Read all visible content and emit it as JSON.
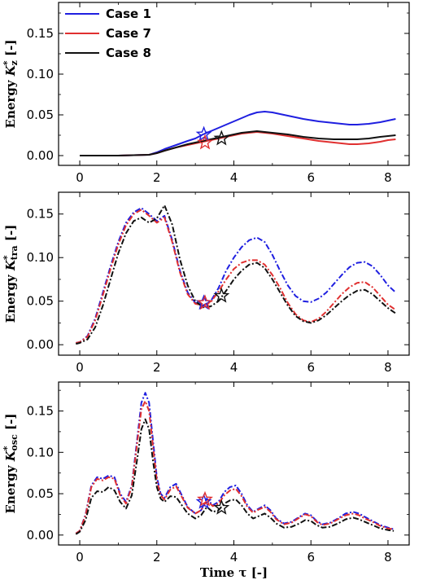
{
  "chart_data": [
    {
      "type": "line",
      "ylabel": "Energy K*z [-]",
      "ylabel_parts": {
        "pre": "Energy ",
        "sym": "K",
        "sup": "*",
        "sub": "z",
        "post": " [-]"
      },
      "xlim": [
        -0.55,
        8.55
      ],
      "ylim": [
        -0.012,
        0.188
      ],
      "xticks": [
        "0",
        "2",
        "4",
        "6",
        "8"
      ],
      "yticks": [
        "0.00",
        "0.05",
        "0.10",
        "0.15"
      ],
      "line_style": "solid",
      "legend": {
        "placement": "top-left",
        "entries": [
          "Case 1",
          "Case 7",
          "Case 8"
        ]
      },
      "series": [
        {
          "name": "Case 1",
          "color": "#1f1fe0",
          "x": [
            0,
            1,
            1.8,
            2.0,
            2.2,
            2.5,
            2.8,
            3.0,
            3.2,
            3.4,
            3.6,
            3.8,
            4.0,
            4.2,
            4.4,
            4.6,
            4.8,
            5.0,
            5.4,
            5.8,
            6.2,
            6.6,
            7.0,
            7.2,
            7.5,
            7.8,
            8.0,
            8.2
          ],
          "y": [
            0,
            0,
            0.001,
            0.004,
            0.008,
            0.013,
            0.018,
            0.021,
            0.026,
            0.03,
            0.034,
            0.038,
            0.042,
            0.046,
            0.05,
            0.053,
            0.054,
            0.053,
            0.049,
            0.045,
            0.042,
            0.04,
            0.038,
            0.038,
            0.039,
            0.041,
            0.043,
            0.045
          ],
          "marker": {
            "x": 3.22,
            "y": 0.026
          }
        },
        {
          "name": "Case 7",
          "color": "#e03030",
          "x": [
            0,
            1,
            1.8,
            2.0,
            2.2,
            2.5,
            2.8,
            3.0,
            3.2,
            3.4,
            3.6,
            3.8,
            4.0,
            4.2,
            4.4,
            4.6,
            4.8,
            5.0,
            5.4,
            5.8,
            6.2,
            6.6,
            7.0,
            7.2,
            7.5,
            7.8,
            8.0,
            8.2
          ],
          "y": [
            0,
            0,
            0.001,
            0.003,
            0.006,
            0.01,
            0.013,
            0.015,
            0.017,
            0.019,
            0.021,
            0.023,
            0.025,
            0.027,
            0.028,
            0.029,
            0.028,
            0.027,
            0.024,
            0.021,
            0.018,
            0.016,
            0.014,
            0.014,
            0.015,
            0.017,
            0.019,
            0.02
          ],
          "marker": {
            "x": 3.25,
            "y": 0.016
          }
        },
        {
          "name": "Case 8",
          "color": "#111111",
          "x": [
            0,
            1,
            1.8,
            2.0,
            2.2,
            2.5,
            2.8,
            3.0,
            3.2,
            3.4,
            3.6,
            3.8,
            4.0,
            4.2,
            4.4,
            4.6,
            4.8,
            5.0,
            5.4,
            5.8,
            6.2,
            6.6,
            7.0,
            7.2,
            7.5,
            7.8,
            8.0,
            8.2
          ],
          "y": [
            0,
            0,
            0.001,
            0.003,
            0.006,
            0.01,
            0.014,
            0.016,
            0.018,
            0.02,
            0.022,
            0.024,
            0.026,
            0.028,
            0.029,
            0.03,
            0.029,
            0.028,
            0.026,
            0.023,
            0.021,
            0.02,
            0.02,
            0.02,
            0.021,
            0.023,
            0.024,
            0.025
          ],
          "marker": {
            "x": 3.68,
            "y": 0.021
          }
        }
      ]
    },
    {
      "type": "line",
      "ylabel": "Energy K*tra [-]",
      "ylabel_parts": {
        "pre": "Energy ",
        "sym": "K",
        "sup": "*",
        "sub": "tra",
        "post": " [-]"
      },
      "xlim": [
        -0.55,
        8.55
      ],
      "ylim": [
        -0.012,
        0.175
      ],
      "xticks": [
        "0",
        "2",
        "4",
        "6",
        "8"
      ],
      "yticks": [
        "0.00",
        "0.05",
        "0.10",
        "0.15"
      ],
      "line_style": "dashdot",
      "series": [
        {
          "name": "Case 1",
          "color": "#1f1fe0",
          "x": [
            -0.1,
            0,
            0.2,
            0.4,
            0.6,
            0.8,
            1.0,
            1.2,
            1.4,
            1.6,
            1.8,
            2.0,
            2.2,
            2.4,
            2.6,
            2.8,
            3.0,
            3.2,
            3.4,
            3.6,
            3.8,
            4.0,
            4.2,
            4.4,
            4.6,
            4.8,
            5.0,
            5.2,
            5.4,
            5.6,
            5.8,
            6.0,
            6.2,
            6.4,
            6.6,
            6.8,
            7.0,
            7.2,
            7.4,
            7.6,
            7.8,
            8.0,
            8.2
          ],
          "y": [
            0.002,
            0.003,
            0.01,
            0.03,
            0.06,
            0.09,
            0.118,
            0.14,
            0.152,
            0.157,
            0.15,
            0.142,
            0.148,
            0.12,
            0.085,
            0.06,
            0.048,
            0.045,
            0.05,
            0.065,
            0.085,
            0.1,
            0.112,
            0.12,
            0.123,
            0.118,
            0.103,
            0.085,
            0.068,
            0.056,
            0.05,
            0.049,
            0.053,
            0.06,
            0.07,
            0.08,
            0.089,
            0.094,
            0.095,
            0.09,
            0.08,
            0.068,
            0.06
          ],
          "marker": {
            "x": 3.22,
            "y": 0.048
          }
        },
        {
          "name": "Case 7",
          "color": "#e03030",
          "x": [
            -0.1,
            0,
            0.2,
            0.4,
            0.6,
            0.8,
            1.0,
            1.2,
            1.4,
            1.6,
            1.8,
            2.0,
            2.2,
            2.4,
            2.6,
            2.8,
            3.0,
            3.2,
            3.4,
            3.6,
            3.8,
            4.0,
            4.2,
            4.4,
            4.6,
            4.8,
            5.0,
            5.2,
            5.4,
            5.6,
            5.8,
            6.0,
            6.2,
            6.4,
            6.6,
            6.8,
            7.0,
            7.2,
            7.4,
            7.6,
            7.8,
            8.0,
            8.2
          ],
          "y": [
            0.002,
            0.003,
            0.009,
            0.028,
            0.057,
            0.087,
            0.115,
            0.137,
            0.15,
            0.155,
            0.148,
            0.14,
            0.146,
            0.118,
            0.083,
            0.058,
            0.047,
            0.045,
            0.049,
            0.061,
            0.075,
            0.087,
            0.094,
            0.097,
            0.097,
            0.092,
            0.08,
            0.065,
            0.048,
            0.035,
            0.028,
            0.026,
            0.03,
            0.038,
            0.048,
            0.058,
            0.066,
            0.071,
            0.072,
            0.066,
            0.056,
            0.046,
            0.04
          ],
          "marker": {
            "x": 3.25,
            "y": 0.048
          }
        },
        {
          "name": "Case 8",
          "color": "#111111",
          "x": [
            -0.1,
            0,
            0.2,
            0.4,
            0.6,
            0.8,
            1.0,
            1.2,
            1.4,
            1.6,
            1.8,
            2.0,
            2.2,
            2.4,
            2.6,
            2.8,
            3.0,
            3.2,
            3.4,
            3.6,
            3.8,
            4.0,
            4.2,
            4.4,
            4.6,
            4.8,
            5.0,
            5.2,
            5.4,
            5.6,
            5.8,
            6.0,
            6.2,
            6.4,
            6.6,
            6.8,
            7.0,
            7.2,
            7.4,
            7.6,
            7.8,
            8.0,
            8.2
          ],
          "y": [
            0.001,
            0.002,
            0.006,
            0.02,
            0.045,
            0.075,
            0.105,
            0.128,
            0.142,
            0.146,
            0.14,
            0.145,
            0.16,
            0.138,
            0.098,
            0.068,
            0.05,
            0.043,
            0.044,
            0.05,
            0.062,
            0.075,
            0.085,
            0.092,
            0.094,
            0.088,
            0.075,
            0.06,
            0.045,
            0.033,
            0.027,
            0.025,
            0.028,
            0.034,
            0.042,
            0.05,
            0.057,
            0.062,
            0.063,
            0.058,
            0.05,
            0.042,
            0.036
          ],
          "marker": {
            "x": 3.68,
            "y": 0.056
          }
        }
      ]
    },
    {
      "type": "line",
      "ylabel": "Energy K*osc [-]",
      "ylabel_parts": {
        "pre": "Energy ",
        "sym": "K",
        "sup": "*",
        "sub": "osc",
        "post": " [-]"
      },
      "xlabel": "Time τ [-]",
      "xlim": [
        -0.55,
        8.55
      ],
      "ylim": [
        -0.012,
        0.185
      ],
      "xticks": [
        "0",
        "2",
        "4",
        "6",
        "8"
      ],
      "yticks": [
        "0.00",
        "0.05",
        "0.10",
        "0.15"
      ],
      "line_style": "dashdot",
      "series": [
        {
          "name": "Case 1",
          "color": "#1f1fe0",
          "x": [
            -0.1,
            0,
            0.15,
            0.3,
            0.45,
            0.6,
            0.75,
            0.9,
            1.05,
            1.2,
            1.35,
            1.5,
            1.6,
            1.7,
            1.8,
            1.9,
            2.0,
            2.1,
            2.2,
            2.35,
            2.5,
            2.65,
            2.8,
            3.0,
            3.15,
            3.3,
            3.45,
            3.6,
            3.75,
            3.9,
            4.05,
            4.2,
            4.35,
            4.5,
            4.65,
            4.8,
            4.95,
            5.1,
            5.3,
            5.5,
            5.7,
            5.85,
            6.0,
            6.15,
            6.3,
            6.5,
            6.7,
            6.9,
            7.1,
            7.25,
            7.4,
            7.6,
            7.8,
            8.0,
            8.15
          ],
          "y": [
            0.002,
            0.005,
            0.025,
            0.06,
            0.07,
            0.068,
            0.072,
            0.07,
            0.05,
            0.04,
            0.06,
            0.12,
            0.16,
            0.172,
            0.16,
            0.115,
            0.07,
            0.05,
            0.045,
            0.058,
            0.062,
            0.048,
            0.034,
            0.026,
            0.03,
            0.044,
            0.036,
            0.04,
            0.052,
            0.058,
            0.06,
            0.05,
            0.036,
            0.028,
            0.032,
            0.036,
            0.03,
            0.02,
            0.014,
            0.016,
            0.022,
            0.026,
            0.024,
            0.017,
            0.013,
            0.015,
            0.02,
            0.026,
            0.028,
            0.026,
            0.022,
            0.017,
            0.012,
            0.009,
            0.007
          ],
          "marker": {
            "x": 3.22,
            "y": 0.04
          }
        },
        {
          "name": "Case 7",
          "color": "#e03030",
          "x": [
            -0.1,
            0,
            0.15,
            0.3,
            0.45,
            0.6,
            0.75,
            0.9,
            1.05,
            1.2,
            1.35,
            1.5,
            1.6,
            1.7,
            1.8,
            1.9,
            2.0,
            2.1,
            2.2,
            2.35,
            2.5,
            2.65,
            2.8,
            3.0,
            3.15,
            3.3,
            3.45,
            3.6,
            3.75,
            3.9,
            4.05,
            4.2,
            4.35,
            4.5,
            4.65,
            4.8,
            4.95,
            5.1,
            5.3,
            5.5,
            5.7,
            5.85,
            6.0,
            6.15,
            6.3,
            6.5,
            6.7,
            6.9,
            7.1,
            7.25,
            7.4,
            7.6,
            7.8,
            8.0,
            8.15
          ],
          "y": [
            0.002,
            0.005,
            0.024,
            0.058,
            0.068,
            0.066,
            0.07,
            0.068,
            0.048,
            0.038,
            0.058,
            0.115,
            0.152,
            0.162,
            0.15,
            0.108,
            0.066,
            0.048,
            0.043,
            0.055,
            0.059,
            0.046,
            0.033,
            0.026,
            0.03,
            0.042,
            0.035,
            0.038,
            0.048,
            0.054,
            0.056,
            0.047,
            0.034,
            0.027,
            0.031,
            0.034,
            0.028,
            0.019,
            0.013,
            0.015,
            0.021,
            0.025,
            0.023,
            0.016,
            0.012,
            0.014,
            0.019,
            0.024,
            0.026,
            0.024,
            0.02,
            0.016,
            0.011,
            0.008,
            0.007
          ],
          "marker": {
            "x": 3.25,
            "y": 0.043
          }
        },
        {
          "name": "Case 8",
          "color": "#111111",
          "x": [
            -0.1,
            0,
            0.15,
            0.3,
            0.45,
            0.6,
            0.75,
            0.9,
            1.05,
            1.2,
            1.35,
            1.5,
            1.6,
            1.7,
            1.8,
            1.9,
            2.0,
            2.1,
            2.2,
            2.35,
            2.5,
            2.65,
            2.8,
            3.0,
            3.15,
            3.3,
            3.45,
            3.6,
            3.75,
            3.9,
            4.05,
            4.2,
            4.35,
            4.5,
            4.65,
            4.8,
            4.95,
            5.1,
            5.3,
            5.5,
            5.7,
            5.85,
            6.0,
            6.15,
            6.3,
            6.5,
            6.7,
            6.9,
            7.1,
            7.25,
            7.4,
            7.6,
            7.8,
            8.0,
            8.15
          ],
          "y": [
            0.001,
            0.004,
            0.018,
            0.045,
            0.053,
            0.052,
            0.058,
            0.054,
            0.04,
            0.032,
            0.048,
            0.095,
            0.128,
            0.14,
            0.128,
            0.09,
            0.058,
            0.044,
            0.04,
            0.047,
            0.046,
            0.036,
            0.026,
            0.02,
            0.024,
            0.034,
            0.028,
            0.03,
            0.038,
            0.042,
            0.043,
            0.036,
            0.026,
            0.02,
            0.023,
            0.026,
            0.021,
            0.014,
            0.009,
            0.01,
            0.014,
            0.018,
            0.017,
            0.012,
            0.009,
            0.01,
            0.014,
            0.019,
            0.021,
            0.019,
            0.016,
            0.012,
            0.008,
            0.006,
            0.005
          ],
          "marker": {
            "x": 3.68,
            "y": 0.033
          }
        }
      ]
    }
  ]
}
